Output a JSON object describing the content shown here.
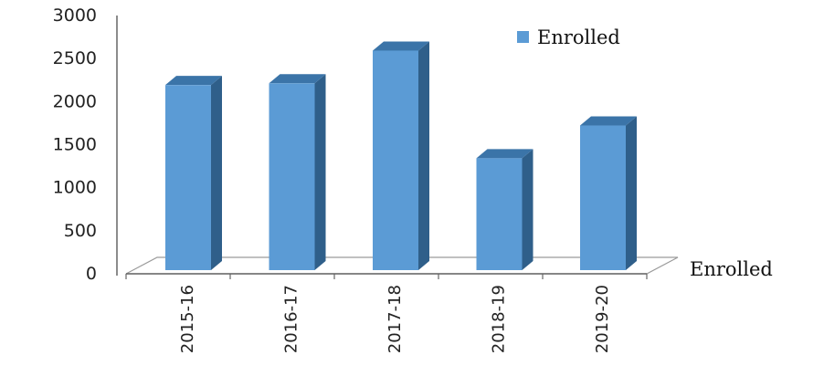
{
  "chart_data": {
    "type": "bar",
    "categories": [
      "2015-16",
      "2016-17",
      "2017-18",
      "2018-19",
      "2019-20"
    ],
    "series": [
      {
        "name": "Enrolled",
        "values": [
          2150,
          2170,
          2550,
          1300,
          1680
        ]
      }
    ],
    "yticks": [
      "0",
      "500",
      "1000",
      "1500",
      "2000",
      "2500",
      "3000"
    ],
    "ylim": [
      0,
      3000
    ],
    "depth_axis_label": "Enrolled",
    "legend_position": "top-right",
    "colors": {
      "bar_front": "#5b9bd5",
      "bar_side": "#2f5f8a",
      "bar_top": "#3b74a8"
    }
  }
}
